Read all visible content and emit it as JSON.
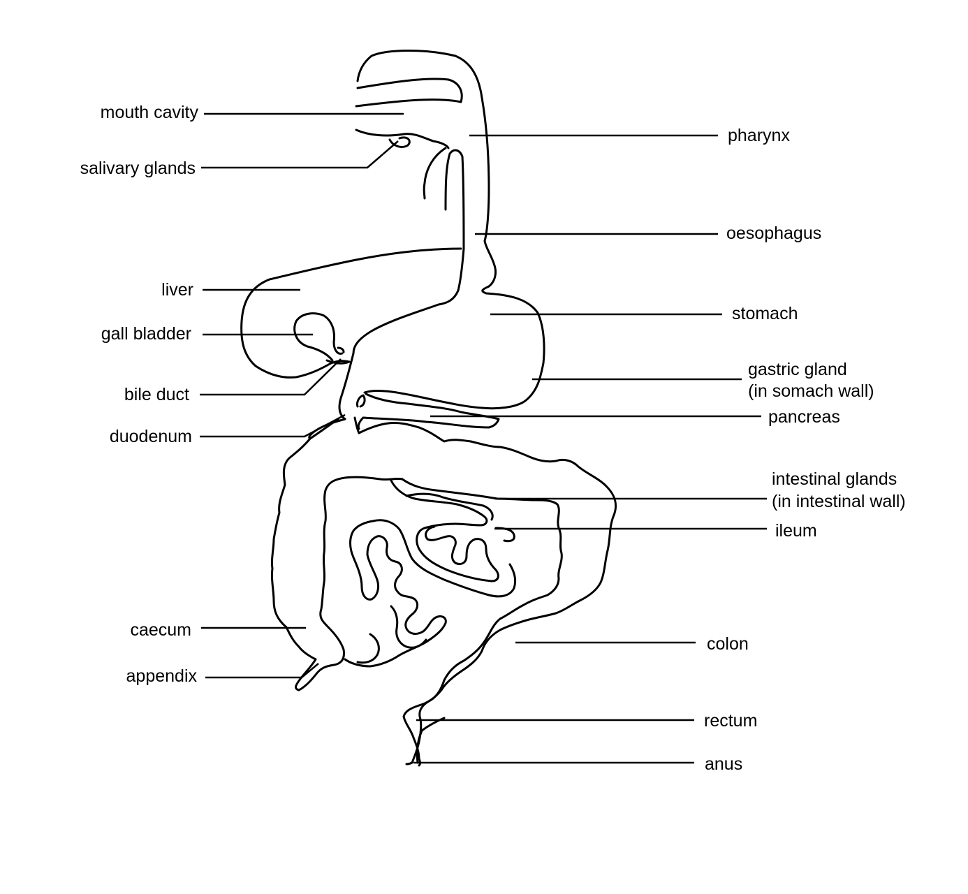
{
  "labels": {
    "mouth_cavity": "mouth cavity",
    "salivary_glands": "salivary glands",
    "liver": "liver",
    "gall_bladder": "gall bladder",
    "bile_duct": "bile duct",
    "duodenum": "duodenum",
    "caecum": "caecum",
    "appendix": "appendix",
    "pharynx": "pharynx",
    "oesophagus": "oesophagus",
    "stomach": "stomach",
    "gastric_gland_1": "gastric gland",
    "gastric_gland_2": "(in somach wall)",
    "pancreas": "pancreas",
    "intestinal_glands_1": "intestinal glands",
    "intestinal_glands_2": "(in intestinal wall)",
    "ileum": "ileum",
    "colon": "colon",
    "rectum": "rectum",
    "anus": "anus"
  },
  "colors": {
    "ink": "#000000",
    "background": "#ffffff"
  }
}
